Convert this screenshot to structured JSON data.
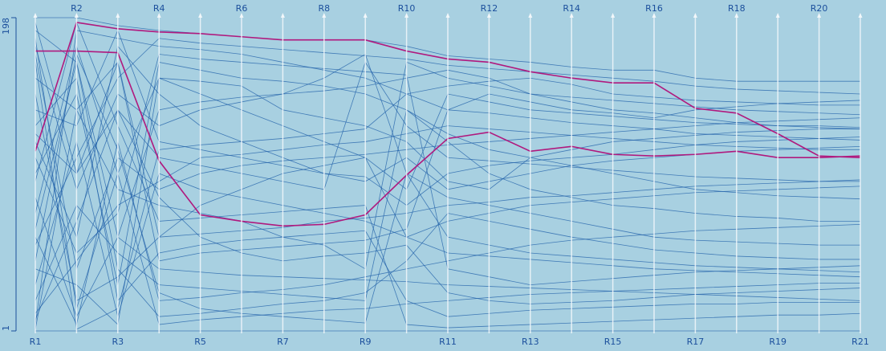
{
  "chart_data": {
    "type": "parallel",
    "categories": [
      "R1",
      "R2",
      "R3",
      "R4",
      "R5",
      "R6",
      "R7",
      "R8",
      "R9",
      "R10",
      "R11",
      "R12",
      "R13",
      "R14",
      "R15",
      "R16",
      "R17",
      "R18",
      "R19",
      "R20",
      "R21"
    ],
    "ylim": [
      1,
      198
    ],
    "yticks": [
      1,
      198
    ],
    "series": [
      {
        "color": "#1f5fa8",
        "values": [
          12,
          45,
          80,
          95,
          110,
          112,
          115,
          118,
          120,
          125,
          130,
          128,
          126,
          124,
          122,
          120,
          118,
          117,
          116,
          115,
          115
        ]
      },
      {
        "color": "#1f5fa8",
        "values": [
          150,
          20,
          35,
          60,
          62,
          64,
          66,
          70,
          72,
          75,
          80,
          82,
          85,
          86,
          88,
          90,
          92,
          93,
          94,
          95,
          96
        ]
      },
      {
        "color": "#1f5fa8",
        "values": [
          190,
          170,
          60,
          40,
          38,
          36,
          35,
          34,
          33,
          32,
          30,
          29,
          28,
          27,
          26,
          25,
          24,
          23,
          22,
          21,
          20
        ]
      },
      {
        "color": "#1f5fa8",
        "values": [
          5,
          190,
          185,
          180,
          178,
          175,
          170,
          165,
          160,
          150,
          140,
          138,
          135,
          132,
          130,
          128,
          125,
          124,
          123,
          122,
          121
        ]
      },
      {
        "color": "#1f5fa8",
        "values": [
          100,
          150,
          30,
          170,
          165,
          160,
          158,
          155,
          150,
          140,
          120,
          100,
          90,
          85,
          80,
          78,
          75,
          73,
          72,
          70,
          70
        ]
      },
      {
        "color": "#1f5fa8",
        "values": [
          60,
          5,
          120,
          20,
          22,
          25,
          27,
          30,
          35,
          40,
          45,
          50,
          55,
          58,
          60,
          62,
          64,
          65,
          66,
          67,
          68
        ]
      },
      {
        "color": "#1f5fa8",
        "values": [
          180,
          90,
          150,
          130,
          140,
          145,
          150,
          152,
          155,
          160,
          165,
          160,
          150,
          145,
          140,
          138,
          135,
          132,
          130,
          130,
          129
        ]
      },
      {
        "color": "#1f5fa8",
        "values": [
          30,
          120,
          10,
          100,
          90,
          85,
          80,
          75,
          70,
          60,
          50,
          48,
          46,
          44,
          42,
          40,
          39,
          38,
          37,
          36,
          35
        ]
      },
      {
        "color": "#1f5fa8",
        "values": [
          120,
          60,
          180,
          150,
          130,
          120,
          110,
          100,
          95,
          110,
          90,
          95,
          100,
          105,
          108,
          110,
          112,
          114,
          115,
          116,
          117
        ]
      },
      {
        "color": "#1f5fa8",
        "values": [
          75,
          180,
          100,
          5,
          8,
          10,
          12,
          14,
          15,
          18,
          20,
          22,
          24,
          25,
          26,
          27,
          28,
          29,
          30,
          31,
          31
        ]
      },
      {
        "color": "#1f5fa8",
        "values": [
          195,
          100,
          170,
          60,
          80,
          90,
          100,
          105,
          110,
          90,
          150,
          145,
          140,
          138,
          136,
          134,
          132,
          131,
          130,
          129,
          128
        ]
      },
      {
        "color": "#1f5fa8",
        "values": [
          40,
          30,
          5,
          160,
          150,
          140,
          130,
          120,
          110,
          60,
          70,
          75,
          80,
          82,
          84,
          86,
          88,
          89,
          90,
          91,
          92
        ]
      },
      {
        "color": "#1f5fa8",
        "values": [
          160,
          140,
          90,
          80,
          75,
          70,
          60,
          55,
          40,
          170,
          160,
          155,
          150,
          148,
          146,
          144,
          142,
          140,
          139,
          138,
          137
        ]
      },
      {
        "color": "#1f5fa8",
        "values": [
          8,
          70,
          140,
          110,
          105,
          100,
          95,
          90,
          170,
          130,
          110,
          108,
          106,
          104,
          102,
          100,
          98,
          97,
          96,
          95,
          95
        ]
      },
      {
        "color": "#1f5fa8",
        "values": [
          85,
          10,
          60,
          140,
          145,
          148,
          150,
          160,
          175,
          100,
          60,
          55,
          50,
          48,
          46,
          44,
          42,
          41,
          40,
          39,
          38
        ]
      },
      {
        "color": "#1f5fa8",
        "values": [
          130,
          160,
          20,
          50,
          55,
          58,
          60,
          62,
          64,
          20,
          10,
          12,
          14,
          15,
          16,
          17,
          18,
          18,
          19,
          19,
          19
        ]
      },
      {
        "color": "#1f5fa8",
        "values": [
          55,
          110,
          160,
          185,
          182,
          180,
          178,
          176,
          174,
          172,
          168,
          166,
          164,
          162,
          160,
          158,
          155,
          153,
          152,
          151,
          150
        ]
      },
      {
        "color": "#1f5fa8",
        "values": [
          175,
          40,
          110,
          90,
          100,
          105,
          108,
          110,
          112,
          115,
          118,
          120,
          122,
          124,
          126,
          128,
          130,
          132,
          133,
          134,
          135
        ]
      },
      {
        "color": "#1f5fa8",
        "values": [
          20,
          80,
          50,
          30,
          28,
          26,
          24,
          22,
          20,
          140,
          125,
          115,
          110,
          105,
          100,
          95,
          90,
          88,
          86,
          85,
          84
        ]
      },
      {
        "color": "#1f5fa8",
        "values": [
          140,
          130,
          190,
          120,
          115,
          110,
          105,
          100,
          98,
          80,
          100,
          105,
          108,
          110,
          112,
          115,
          118,
          120,
          121,
          122,
          123
        ]
      },
      {
        "color": "#1f5fa8",
        "values": [
          95,
          195,
          130,
          70,
          72,
          74,
          76,
          78,
          80,
          5,
          3,
          4,
          5,
          6,
          7,
          8,
          9,
          10,
          11,
          11,
          12
        ]
      },
      {
        "color": "#1f5fa8",
        "values": [
          110,
          50,
          75,
          175,
          172,
          170,
          168,
          166,
          164,
          162,
          40,
          35,
          30,
          32,
          34,
          36,
          38,
          39,
          40,
          41,
          42
        ]
      },
      {
        "color": "#1f5fa8",
        "values": [
          65,
          170,
          40,
          10,
          12,
          15,
          18,
          20,
          25,
          45,
          75,
          70,
          65,
          60,
          56,
          52,
          50,
          48,
          47,
          46,
          46
        ]
      },
      {
        "color": "#1f5fa8",
        "values": [
          185,
          15,
          100,
          160,
          158,
          155,
          140,
          135,
          130,
          120,
          95,
          90,
          110,
          115,
          120,
          122,
          124,
          126,
          127,
          128,
          128
        ]
      },
      {
        "color": "#1f5fa8",
        "values": [
          2,
          140,
          170,
          45,
          50,
          52,
          54,
          56,
          58,
          65,
          140,
          150,
          145,
          140,
          138,
          135,
          140,
          142,
          144,
          145,
          146
        ]
      },
      {
        "color": "#1f5fa8",
        "values": [
          170,
          2,
          15,
          115,
          118,
          120,
          122,
          125,
          128,
          150,
          155,
          158,
          160,
          156,
          150,
          148,
          146,
          145,
          144,
          143,
          143
        ]
      },
      {
        "color": "#1f5fa8",
        "values": [
          45,
          175,
          115,
          25,
          15,
          12,
          10,
          8,
          6,
          100,
          85,
          80,
          75,
          70,
          65,
          60,
          58,
          57,
          56,
          55,
          55
        ]
      },
      {
        "color": "#1f5fa8",
        "values": [
          125,
          100,
          140,
          85,
          60,
          50,
          45,
          48,
          50,
          55,
          25,
          20,
          18,
          19,
          20,
          22,
          24,
          25,
          26,
          27,
          28
        ]
      },
      {
        "color": "#1f5fa8",
        "values": [
          198,
          198,
          193,
          190,
          188,
          186,
          184,
          184,
          184,
          180,
          174,
          172,
          170,
          167,
          165,
          165,
          160,
          158,
          158,
          158,
          158
        ]
      },
      {
        "color": "#1f5fa8",
        "values": [
          1,
          1,
          1,
          1,
          1,
          1,
          1,
          1,
          1,
          1,
          1,
          1,
          1,
          1,
          1,
          1,
          1,
          1,
          1,
          1,
          1
        ]
      },
      {
        "color": "#b0197e",
        "values": [
          177,
          177,
          176,
          108,
          74,
          70,
          67,
          68,
          74,
          99,
          122,
          126,
          114,
          117,
          112,
          111,
          112,
          114,
          110,
          110,
          111
        ]
      },
      {
        "color": "#b0197e",
        "values": [
          114,
          195,
          191,
          189,
          188,
          186,
          184,
          184,
          184,
          177,
          172,
          170,
          164,
          160,
          157,
          157,
          141,
          138,
          125,
          111,
          110
        ]
      }
    ]
  }
}
